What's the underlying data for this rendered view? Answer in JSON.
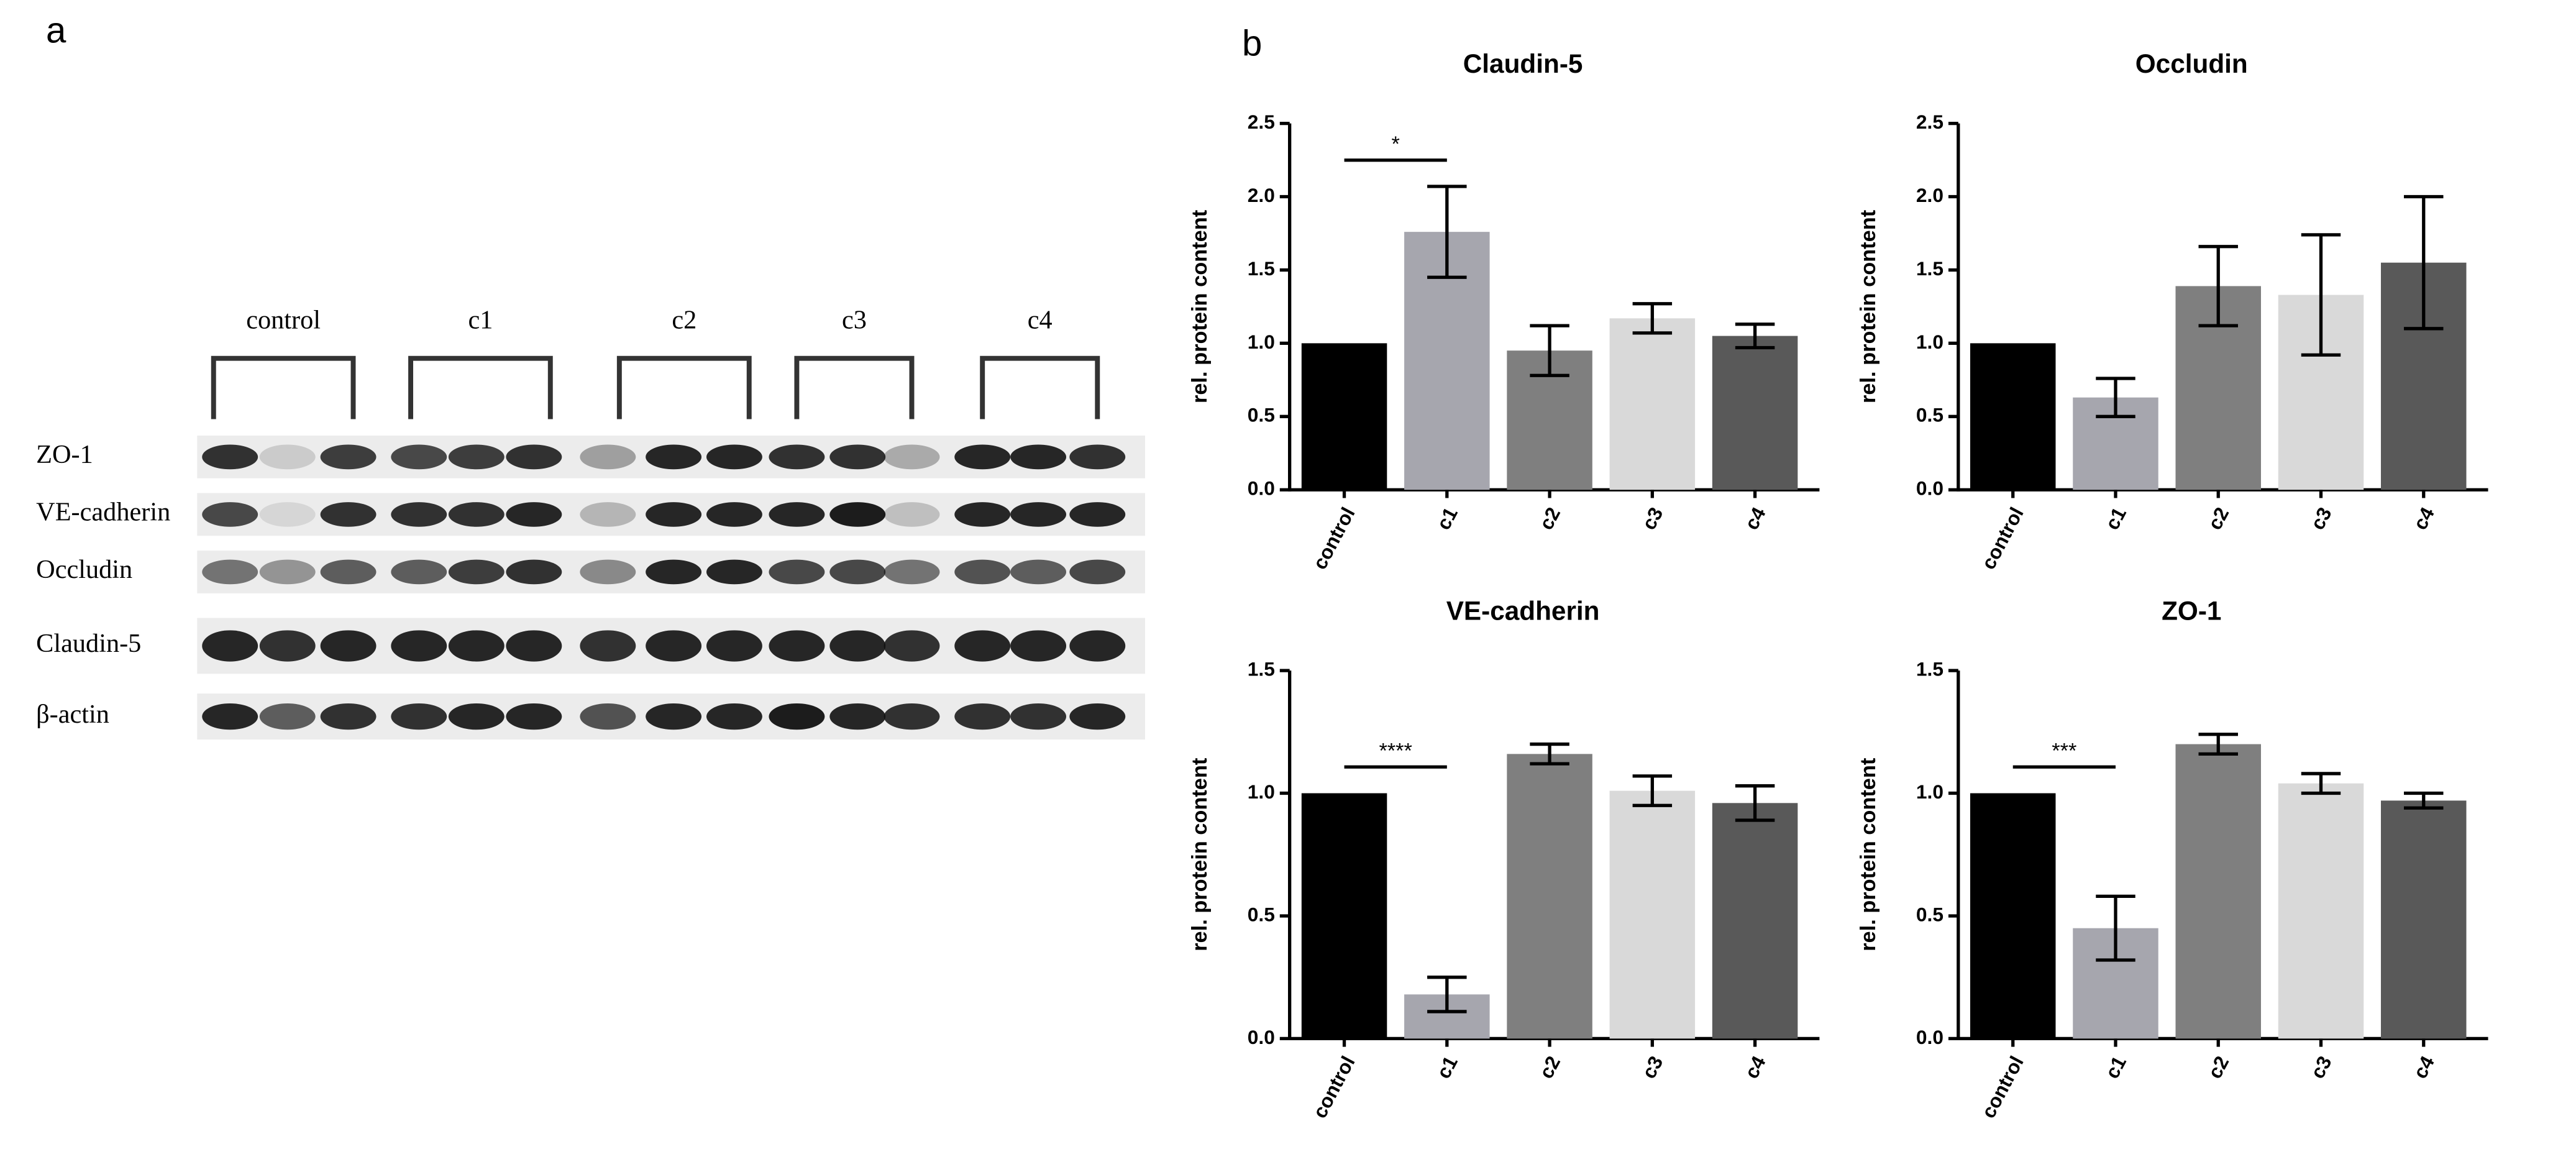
{
  "panel_labels": [
    "a",
    "b"
  ],
  "blot": {
    "groups": [
      "control",
      "c1",
      "c2",
      "c3",
      "c4"
    ],
    "rows": [
      "ZO-1",
      "VE-cadherin",
      "Occludin",
      "Claudin-5",
      "β-actin"
    ]
  },
  "chart_data": [
    {
      "type": "bar",
      "title": "Claudin-5",
      "y_label": "rel. protein content",
      "categories": [
        "control",
        "c1",
        "c2",
        "c3",
        "c4"
      ],
      "values": [
        1.0,
        1.76,
        0.95,
        1.17,
        1.05
      ],
      "errors": [
        null,
        0.31,
        0.17,
        0.1,
        0.08
      ],
      "colors": [
        "#000000",
        "#a6a6ae",
        "#7f7f7f",
        "#d9d9d9",
        "#595959"
      ],
      "ylim": [
        0,
        2.5
      ],
      "yticks": [
        {
          "value": 0,
          "label": "0.0"
        },
        0.5,
        {
          "value": 1,
          "label": "1.0"
        },
        1.5,
        {
          "value": 2,
          "label": "2.0"
        },
        2.5
      ],
      "annotation": "*"
    },
    {
      "type": "bar",
      "title": "Occludin",
      "y_label": "rel. protein content",
      "categories": [
        "control",
        "c1",
        "c2",
        "c3",
        "c4"
      ],
      "values": [
        1.0,
        0.63,
        1.39,
        1.33,
        1.55
      ],
      "errors": [
        null,
        0.13,
        0.27,
        0.41,
        0.45
      ],
      "colors": [
        "#000000",
        "#a6a6ae",
        "#7f7f7f",
        "#d9d9d9",
        "#595959"
      ],
      "ylim": [
        0,
        2.5
      ],
      "yticks": [
        {
          "value": 0,
          "label": "0.0"
        },
        0.5,
        {
          "value": 1,
          "label": "1.0"
        },
        1.5,
        {
          "value": 2,
          "label": "2.0"
        },
        2.5
      ]
    },
    {
      "type": "bar",
      "title": "VE-cadherin",
      "y_label": "rel. protein content",
      "categories": [
        "control",
        "c1",
        "c2",
        "c3",
        "c4"
      ],
      "values": [
        1.0,
        0.18,
        1.16,
        1.01,
        0.96
      ],
      "errors": [
        null,
        0.07,
        0.04,
        0.06,
        0.07
      ],
      "colors": [
        "#000000",
        "#a6a6ae",
        "#7f7f7f",
        "#d9d9d9",
        "#595959"
      ],
      "ylim": [
        0,
        1.5
      ],
      "yticks": [
        {
          "value": 0,
          "label": "0.0"
        },
        0.5,
        {
          "value": 1,
          "label": "1.0"
        },
        1.5
      ],
      "annotation": "****"
    },
    {
      "type": "bar",
      "title": "ZO-1",
      "y_label": "rel. protein content",
      "categories": [
        "control",
        "c1",
        "c2",
        "c3",
        "c4"
      ],
      "values": [
        1.0,
        0.45,
        1.2,
        1.04,
        0.97
      ],
      "errors": [
        null,
        0.13,
        0.04,
        0.04,
        0.03
      ],
      "colors": [
        "#000000",
        "#a6a6ae",
        "#7f7f7f",
        "#d9d9d9",
        "#595959"
      ],
      "ylim": [
        0,
        1.5
      ],
      "yticks": [
        {
          "value": 0,
          "label": "0.0"
        },
        0.5,
        {
          "value": 1,
          "label": "1.0"
        },
        1.5
      ],
      "annotation": "***"
    }
  ]
}
